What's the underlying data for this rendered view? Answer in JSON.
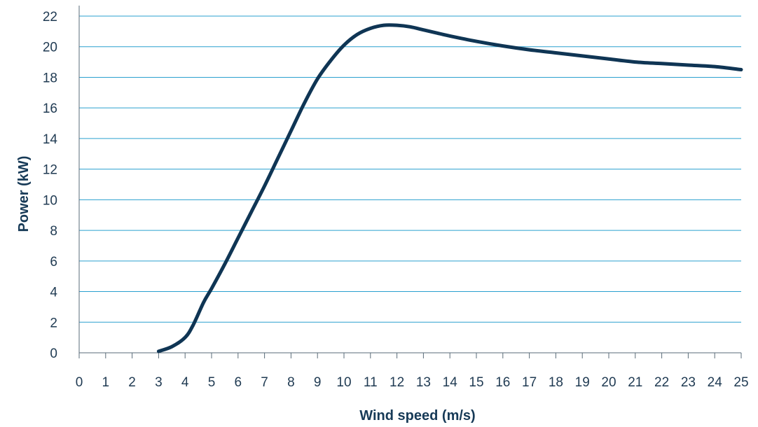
{
  "chart_data": {
    "type": "line",
    "title": "",
    "xlabel": "Wind speed (m/s)",
    "ylabel": "Power (kW)",
    "xlim": [
      0,
      25
    ],
    "ylim": [
      0,
      22
    ],
    "x_ticks": [
      "0",
      "1",
      "2",
      "3",
      "4",
      "5",
      "6",
      "7",
      "8",
      "9",
      "10",
      "11",
      "12",
      "13",
      "14",
      "15",
      "16",
      "17",
      "18",
      "19",
      "20",
      "21",
      "22",
      "23",
      "24",
      "25"
    ],
    "y_ticks": [
      "0",
      "2",
      "4",
      "6",
      "8",
      "10",
      "12",
      "14",
      "16",
      "18",
      "20",
      "22"
    ],
    "grid": "horizontal",
    "legend": "none",
    "colors": {
      "line": "#0f3554",
      "grid": "#2aa0cf",
      "axis": "#5a6b78",
      "text": "#1f3a52"
    },
    "series": [
      {
        "x": [
          3,
          3.5,
          4,
          4.3,
          4.7,
          5,
          5.5,
          6,
          6.5,
          7,
          7.5,
          8,
          8.5,
          9,
          9.5,
          10,
          10.5,
          11,
          11.5,
          12,
          12.5,
          13,
          13.5,
          14,
          15,
          16,
          17,
          18,
          19,
          20,
          21,
          22,
          23,
          24,
          25
        ],
        "y": [
          0.1,
          0.4,
          1.0,
          1.8,
          3.3,
          4.2,
          5.8,
          7.5,
          9.2,
          10.9,
          12.7,
          14.5,
          16.3,
          17.9,
          19.1,
          20.1,
          20.8,
          21.2,
          21.4,
          21.4,
          21.3,
          21.1,
          20.9,
          20.7,
          20.35,
          20.05,
          19.8,
          19.6,
          19.4,
          19.2,
          19.0,
          18.9,
          18.8,
          18.7,
          18.5
        ]
      }
    ]
  }
}
